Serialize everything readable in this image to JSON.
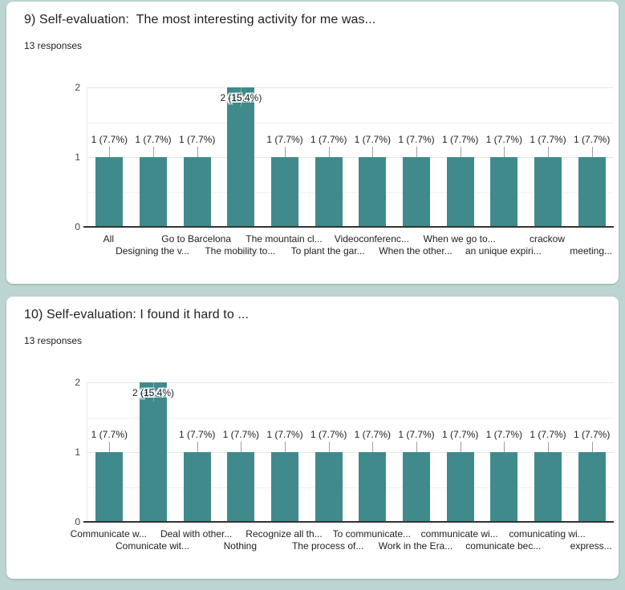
{
  "page": {
    "background_color": "#bcd5d3",
    "card_color": "#ffffff"
  },
  "cards": [
    {
      "title": "9) Self-evaluation:  The most interesting activity for me was...",
      "responses": "13 responses"
    },
    {
      "title": "10) Self-evaluation: I found it hard to ...",
      "responses": "13 responses"
    }
  ],
  "chart_data": [
    {
      "type": "bar",
      "title": "9) Self-evaluation:  The most interesting activity for me was...",
      "subtitle": "13 responses",
      "categories": [
        "All",
        "Designing the v...",
        "Go to Barcelona",
        "The mobility to...",
        "The mountain cl...",
        "To plant the gar...",
        "Videoconferenc...",
        "When the other...",
        "When we go to...",
        "an unique expiri...",
        "crackow",
        "meeting..."
      ],
      "values": [
        1,
        1,
        1,
        2,
        1,
        1,
        1,
        1,
        1,
        1,
        1,
        1
      ],
      "annotations": [
        "1 (7.7%)",
        "1 (7.7%)",
        "1 (7.7%)",
        "2 (15.4%)",
        "1 (7.7%)",
        "1 (7.7%)",
        "1 (7.7%)",
        "1 (7.7%)",
        "1 (7.7%)",
        "1 (7.7%)",
        "1 (7.7%)",
        "1 (7.7%)"
      ],
      "yticks": [
        "0",
        "1",
        "2"
      ],
      "ylim": [
        0,
        2
      ],
      "xlabel": "",
      "ylabel": "",
      "grid": true,
      "legend": false,
      "bar_color": "#418a8c",
      "x_labels_staggered": true
    },
    {
      "type": "bar",
      "title": "10) Self-evaluation: I found it hard to ...",
      "subtitle": "13 responses",
      "categories": [
        "Communicate w...",
        "Comunicate wit...",
        "Deal with other...",
        "Nothing",
        "Recognize all th...",
        "The process of...",
        "To communicate...",
        "Work in the Era...",
        "communicate wi...",
        "comunicate bec...",
        "comunicating wi...",
        "express..."
      ],
      "values": [
        1,
        2,
        1,
        1,
        1,
        1,
        1,
        1,
        1,
        1,
        1,
        1
      ],
      "annotations": [
        "1 (7.7%)",
        "2 (15.4%)",
        "1 (7.7%)",
        "1 (7.7%)",
        "1 (7.7%)",
        "1 (7.7%)",
        "1 (7.7%)",
        "1 (7.7%)",
        "1 (7.7%)",
        "1 (7.7%)",
        "1 (7.7%)",
        "1 (7.7%)"
      ],
      "yticks": [
        "0",
        "1",
        "2"
      ],
      "ylim": [
        0,
        2
      ],
      "xlabel": "",
      "ylabel": "",
      "grid": true,
      "legend": false,
      "bar_color": "#418a8c",
      "x_labels_staggered": true
    }
  ]
}
